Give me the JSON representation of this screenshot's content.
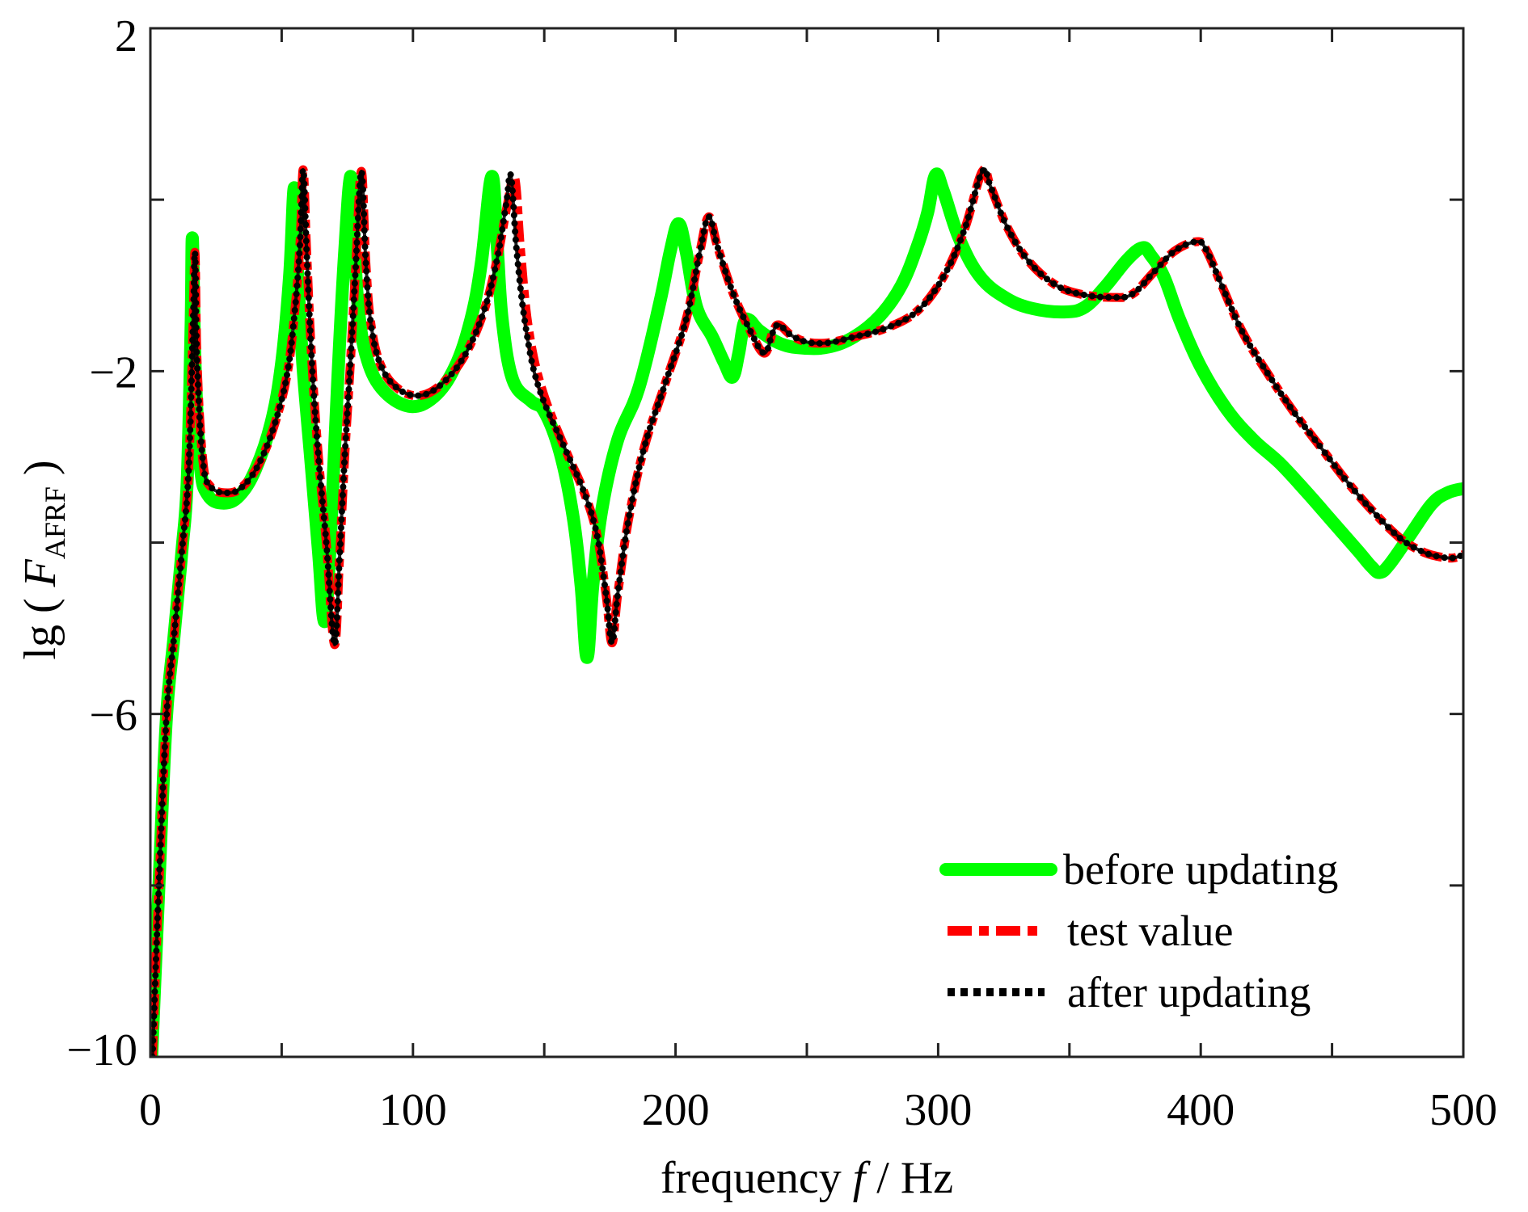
{
  "chart_data": {
    "type": "line",
    "title": "",
    "xlabel": {
      "prefix": "frequency ",
      "symbol": "f",
      "suffix": " / Hz"
    },
    "ylabel": {
      "prefix": "lg ( ",
      "symbol": "F",
      "subscript": "AFRF",
      "suffix": " )"
    },
    "xlim": [
      0,
      500
    ],
    "ylim": [
      -10,
      2
    ],
    "x_major_ticks": [
      0,
      100,
      200,
      300,
      400,
      500
    ],
    "x_minor_ticks": [
      50,
      150,
      250,
      350,
      450
    ],
    "x_tick_labels": [
      "0",
      "100",
      "200",
      "300",
      "400",
      "500"
    ],
    "y_major_ticks": [
      -10,
      -6,
      -2,
      2
    ],
    "y_minor_ticks": [
      -8,
      -4,
      0
    ],
    "y_tick_labels": [
      "−10",
      "−6",
      "−2",
      "2"
    ],
    "grid": false,
    "legend_position": "bottom-right",
    "series": [
      {
        "name": "before updating",
        "color": "#00ff00",
        "style": "solid",
        "points": [
          [
            0.5,
            -10
          ],
          [
            3,
            -8.2
          ],
          [
            6,
            -6.1
          ],
          [
            9,
            -5.1
          ],
          [
            12,
            -4.1
          ],
          [
            14,
            -3.3
          ],
          [
            15.5,
            -1.5
          ],
          [
            16,
            -0.45
          ],
          [
            17,
            -1.9
          ],
          [
            19,
            -3.1
          ],
          [
            22,
            -3.45
          ],
          [
            28,
            -3.54
          ],
          [
            34,
            -3.45
          ],
          [
            40,
            -3.15
          ],
          [
            46,
            -2.6
          ],
          [
            50,
            -1.9
          ],
          [
            53,
            -0.9
          ],
          [
            54.8,
            0.14
          ],
          [
            56,
            -0.8
          ],
          [
            58,
            -1.9
          ],
          [
            61,
            -3.0
          ],
          [
            64,
            -4.1
          ],
          [
            66.2,
            -4.92
          ],
          [
            68,
            -4.3
          ],
          [
            70,
            -3.0
          ],
          [
            72,
            -1.7
          ],
          [
            74,
            -0.6
          ],
          [
            76.2,
            0.27
          ],
          [
            77.5,
            -0.4
          ],
          [
            79,
            -1.2
          ],
          [
            82,
            -1.8
          ],
          [
            88,
            -2.2
          ],
          [
            98.5,
            -2.41
          ],
          [
            108,
            -2.3
          ],
          [
            116,
            -1.95
          ],
          [
            122,
            -1.4
          ],
          [
            126,
            -0.75
          ],
          [
            130,
            0.27
          ],
          [
            132,
            -0.5
          ],
          [
            134,
            -1.4
          ],
          [
            138,
            -2.1
          ],
          [
            145,
            -2.35
          ],
          [
            150,
            -2.47
          ],
          [
            156,
            -2.95
          ],
          [
            161,
            -3.7
          ],
          [
            164,
            -4.5
          ],
          [
            166.3,
            -5.34
          ],
          [
            168.5,
            -4.5
          ],
          [
            172,
            -3.6
          ],
          [
            178,
            -2.8
          ],
          [
            186,
            -2.2
          ],
          [
            194,
            -1.2
          ],
          [
            198,
            -0.6
          ],
          [
            201.1,
            -0.28
          ],
          [
            204,
            -0.6
          ],
          [
            208,
            -1.25
          ],
          [
            214,
            -1.6
          ],
          [
            218.5,
            -1.9
          ],
          [
            221.7,
            -2.07
          ],
          [
            224,
            -1.8
          ],
          [
            226,
            -1.45
          ],
          [
            228,
            -1.4
          ],
          [
            232,
            -1.53
          ],
          [
            240,
            -1.68
          ],
          [
            248,
            -1.73
          ],
          [
            258,
            -1.72
          ],
          [
            268,
            -1.6
          ],
          [
            278,
            -1.35
          ],
          [
            286,
            -1.0
          ],
          [
            292,
            -0.55
          ],
          [
            296,
            -0.15
          ],
          [
            299,
            0.29
          ],
          [
            302,
            0.1
          ],
          [
            308,
            -0.45
          ],
          [
            316,
            -0.9
          ],
          [
            326,
            -1.15
          ],
          [
            336,
            -1.27
          ],
          [
            348,
            -1.31
          ],
          [
            356,
            -1.25
          ],
          [
            364,
            -1.0
          ],
          [
            372,
            -0.7
          ],
          [
            377.8,
            -0.56
          ],
          [
            381,
            -0.65
          ],
          [
            386,
            -0.9
          ],
          [
            392,
            -1.4
          ],
          [
            400,
            -1.95
          ],
          [
            410,
            -2.45
          ],
          [
            420,
            -2.8
          ],
          [
            430,
            -3.07
          ],
          [
            440,
            -3.4
          ],
          [
            450,
            -3.75
          ],
          [
            460,
            -4.1
          ],
          [
            465,
            -4.28
          ],
          [
            468.2,
            -4.35
          ],
          [
            472,
            -4.25
          ],
          [
            480,
            -3.9
          ],
          [
            488,
            -3.55
          ],
          [
            494,
            -3.42
          ],
          [
            500,
            -3.37
          ]
        ]
      },
      {
        "name": "test value",
        "color": "#ff0000",
        "style": "dash-dot",
        "points": [
          [
            0.8,
            -10
          ],
          [
            3,
            -8.2
          ],
          [
            6,
            -6.1
          ],
          [
            9,
            -5.1
          ],
          [
            12,
            -4.1
          ],
          [
            14.5,
            -3.2
          ],
          [
            16.2,
            -1.5
          ],
          [
            17,
            -0.62
          ],
          [
            17.8,
            -1.9
          ],
          [
            20,
            -3.05
          ],
          [
            23,
            -3.35
          ],
          [
            29.5,
            -3.42
          ],
          [
            35,
            -3.35
          ],
          [
            41,
            -3.1
          ],
          [
            47,
            -2.65
          ],
          [
            52,
            -2.05
          ],
          [
            55,
            -1.3
          ],
          [
            57,
            -0.5
          ],
          [
            58.2,
            0.35
          ],
          [
            59.5,
            -0.6
          ],
          [
            61.5,
            -1.9
          ],
          [
            64,
            -3.0
          ],
          [
            67,
            -4.0
          ],
          [
            70.1,
            -5.19
          ],
          [
            72,
            -4.2
          ],
          [
            74,
            -3.0
          ],
          [
            76,
            -2.0
          ],
          [
            78,
            -0.9
          ],
          [
            80.3,
            0.33
          ],
          [
            82,
            -0.7
          ],
          [
            84,
            -1.45
          ],
          [
            88,
            -1.95
          ],
          [
            95,
            -2.22
          ],
          [
            103.6,
            -2.28
          ],
          [
            112,
            -2.12
          ],
          [
            120,
            -1.8
          ],
          [
            127,
            -1.3
          ],
          [
            132,
            -0.7
          ],
          [
            136,
            -0.05
          ],
          [
            138.8,
            0.25
          ],
          [
            141,
            -0.6
          ],
          [
            144,
            -1.5
          ],
          [
            149,
            -2.2
          ],
          [
            158,
            -2.91
          ],
          [
            165,
            -3.4
          ],
          [
            170,
            -3.9
          ],
          [
            173.5,
            -4.6
          ],
          [
            175.8,
            -5.17
          ],
          [
            178,
            -4.6
          ],
          [
            182,
            -3.75
          ],
          [
            188,
            -2.9
          ],
          [
            196,
            -2.15
          ],
          [
            204,
            -1.4
          ],
          [
            209,
            -0.65
          ],
          [
            212.6,
            -0.2
          ],
          [
            216,
            -0.55
          ],
          [
            222,
            -1.1
          ],
          [
            228,
            -1.5
          ],
          [
            233.7,
            -1.79
          ],
          [
            237,
            -1.55
          ],
          [
            239.3,
            -1.46
          ],
          [
            244,
            -1.58
          ],
          [
            250,
            -1.66
          ],
          [
            258,
            -1.67
          ],
          [
            268,
            -1.6
          ],
          [
            280,
            -1.5
          ],
          [
            292,
            -1.3
          ],
          [
            302,
            -0.9
          ],
          [
            310,
            -0.35
          ],
          [
            316.8,
            0.33
          ],
          [
            320,
            0.15
          ],
          [
            326,
            -0.3
          ],
          [
            334,
            -0.7
          ],
          [
            344,
            -0.98
          ],
          [
            354,
            -1.1
          ],
          [
            366.6,
            -1.14
          ],
          [
            374,
            -1.1
          ],
          [
            382,
            -0.85
          ],
          [
            390,
            -0.6
          ],
          [
            398.4,
            -0.49
          ],
          [
            402,
            -0.58
          ],
          [
            408,
            -1.0
          ],
          [
            416,
            -1.55
          ],
          [
            426,
            -2.05
          ],
          [
            436,
            -2.5
          ],
          [
            446,
            -2.9
          ],
          [
            456,
            -3.3
          ],
          [
            466,
            -3.65
          ],
          [
            476,
            -3.95
          ],
          [
            484,
            -4.1
          ],
          [
            490,
            -4.16
          ],
          [
            496,
            -4.18
          ],
          [
            500,
            -4.14
          ]
        ]
      },
      {
        "name": "after updating",
        "color": "#000000",
        "style": "dotted",
        "points": [
          [
            0.8,
            -10
          ],
          [
            3,
            -8.2
          ],
          [
            6,
            -6.1
          ],
          [
            9,
            -5.1
          ],
          [
            12,
            -4.1
          ],
          [
            14.5,
            -3.2
          ],
          [
            16.2,
            -1.5
          ],
          [
            17,
            -0.62
          ],
          [
            17.8,
            -1.9
          ],
          [
            20,
            -3.05
          ],
          [
            23,
            -3.35
          ],
          [
            29.5,
            -3.42
          ],
          [
            35,
            -3.35
          ],
          [
            41,
            -3.1
          ],
          [
            47,
            -2.65
          ],
          [
            52,
            -2.05
          ],
          [
            55,
            -1.3
          ],
          [
            57,
            -0.5
          ],
          [
            58.2,
            0.35
          ],
          [
            59.5,
            -0.6
          ],
          [
            61.5,
            -1.9
          ],
          [
            64,
            -3.0
          ],
          [
            67,
            -4.0
          ],
          [
            70.1,
            -5.19
          ],
          [
            72,
            -4.2
          ],
          [
            74,
            -3.0
          ],
          [
            76,
            -2.0
          ],
          [
            78,
            -0.9
          ],
          [
            80.3,
            0.33
          ],
          [
            82,
            -0.7
          ],
          [
            84,
            -1.45
          ],
          [
            88,
            -1.95
          ],
          [
            95,
            -2.22
          ],
          [
            103.6,
            -2.28
          ],
          [
            112,
            -2.12
          ],
          [
            120,
            -1.8
          ],
          [
            127,
            -1.3
          ],
          [
            132,
            -0.7
          ],
          [
            135.5,
            -0.05
          ],
          [
            137.3,
            0.28
          ],
          [
            139.5,
            -0.6
          ],
          [
            143,
            -1.5
          ],
          [
            148,
            -2.2
          ],
          [
            158,
            -2.91
          ],
          [
            165,
            -3.4
          ],
          [
            170,
            -3.9
          ],
          [
            173.5,
            -4.6
          ],
          [
            175.8,
            -5.17
          ],
          [
            178,
            -4.6
          ],
          [
            182,
            -3.75
          ],
          [
            188,
            -2.9
          ],
          [
            196,
            -2.15
          ],
          [
            204,
            -1.4
          ],
          [
            209,
            -0.65
          ],
          [
            212.6,
            -0.2
          ],
          [
            216,
            -0.55
          ],
          [
            222,
            -1.1
          ],
          [
            228,
            -1.5
          ],
          [
            233.7,
            -1.79
          ],
          [
            237,
            -1.55
          ],
          [
            239.3,
            -1.46
          ],
          [
            244,
            -1.58
          ],
          [
            250,
            -1.66
          ],
          [
            258,
            -1.67
          ],
          [
            268,
            -1.6
          ],
          [
            280,
            -1.5
          ],
          [
            292,
            -1.3
          ],
          [
            302,
            -0.9
          ],
          [
            310,
            -0.35
          ],
          [
            316.8,
            0.33
          ],
          [
            320,
            0.15
          ],
          [
            326,
            -0.3
          ],
          [
            334,
            -0.7
          ],
          [
            344,
            -0.98
          ],
          [
            354,
            -1.1
          ],
          [
            366.6,
            -1.14
          ],
          [
            374,
            -1.1
          ],
          [
            382,
            -0.85
          ],
          [
            390,
            -0.6
          ],
          [
            398.4,
            -0.49
          ],
          [
            402,
            -0.58
          ],
          [
            408,
            -1.0
          ],
          [
            416,
            -1.55
          ],
          [
            426,
            -2.05
          ],
          [
            436,
            -2.5
          ],
          [
            446,
            -2.9
          ],
          [
            456,
            -3.3
          ],
          [
            466,
            -3.65
          ],
          [
            476,
            -3.95
          ],
          [
            484,
            -4.1
          ],
          [
            490,
            -4.16
          ],
          [
            496,
            -4.18
          ],
          [
            500,
            -4.14
          ]
        ]
      }
    ]
  }
}
